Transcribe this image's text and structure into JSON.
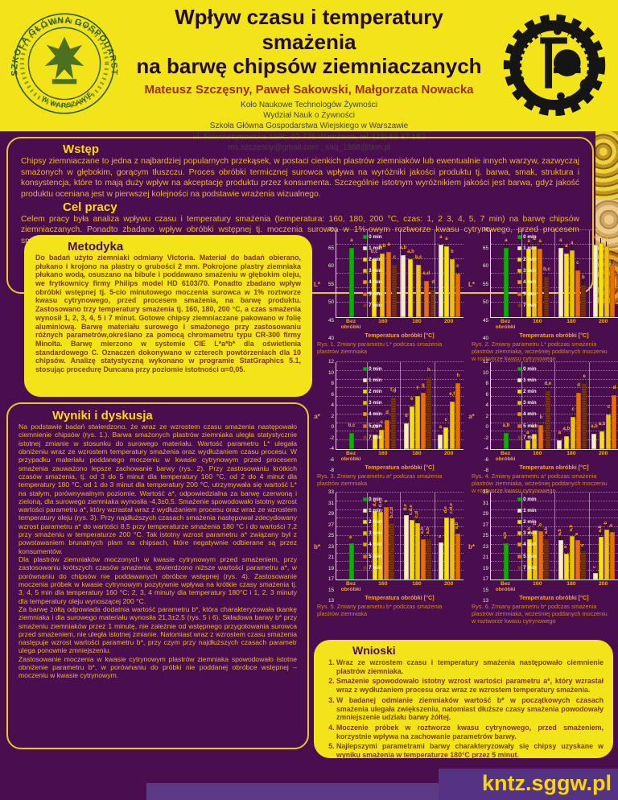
{
  "header": {
    "title_line1": "Wpływ czasu i temperatury smażenia",
    "title_line2": "na barwę chipsów ziemniaczanych",
    "authors": "Mateusz Szczęsny, Paweł Sakowski, Małgorzata Nowacka",
    "affiliation": [
      "Koło Naukowe Technologów Żywności",
      "Wydział Nauk o Żywności",
      "Szkoła Główna Gospodarstwa Wiejskiego w Warszawie",
      "ul. Nowoursynowska 159c, 02-776 Warszawa,  tel. (22) 59 37 182",
      "ms.szczesny@gmail.com , saq_1988@tlen.pl"
    ],
    "seal_text_ring": "SZKOŁA GŁÓWNA GOSPODARSTWA WIEJSKIEGO",
    "seal_text_bottom": "W WARSZAWIE"
  },
  "intro": {
    "heading": "Wstęp",
    "body": "Chipsy ziemniaczane to jedna z najbardziej popularnych przekąsek, w postaci cienkich plastrów ziemniaków lub ewentualnie innych warzyw, zazwyczaj smażonych w głębokim, gorącym tłuszczu. Proces obróbki termicznej surowca wpływa na wyróżniki jakości produktu tj. barwa, smak, struktura i konsystencja, które to mają duży wpływ na akceptację produktu przez konsumenta. Szczególnie istotnym wyróżnikiem jakości jest barwa, gdyż jakość produktu oceniana jest w pierwszej kolejności na podstawie wrażenia wizualnego."
  },
  "aim": {
    "heading": "Cel pracy",
    "body": "Celem pracy była analiza wpływu czasu i temperatury smażenia (temperatura: 160, 180, 200 °C, czas: 1, 2 3, 4, 5, 7 min) na barwę chipsów ziemniaczanych. Ponadto zbadano wpływ obróbki wstępnej tj. moczenia surowca w 1%-owym roztworze kwasu cytrynowego, przed procesem smażenia, na barwę produktu."
  },
  "methods": {
    "heading": "Metodyka",
    "body": "Do badań użyto ziemniaki odmiany Victoria. Materiał do badań obierano, płukano i krojono na plastry o grubości 2 mm. Pokrojone plastry ziemniaka płukano wodą, osuszano na bibule i poddawano smażeniu w głębokim oleju, we frytkownicy firmy Philips model HD 6103/70. Ponadto zbadano wpływ obróbki wstępnej tj. 5-cio minutowego moczenia surowca w 1% roztworze kwasu cytrynowego, przed procesem smażenia, na barwę produktu. Zastosowano trzy temperatury smażenia tj. 160, 180, 200 °C, a czas smażenia wynosił 1, 2, 3, 4, 5 i 7 minut. Gotowe chipsy ziemniaczane pakowano w folię aluminiową. Barwę materiału surowego i smażonego przy zastosowaniu różnych parametrów,określano za pomocą chromametru typu CR-300 firmy Minolta. Barwę mierzono w systemie CIE L*a*b* dla oświetlenia standardowego C. Oznaczeń dokonywano w czterech powtórzeniach dla 10 chipsów. Analizę statystyczną wykonano w programie StatGraphics 5.1, stosując procedurę Duncana przy poziomie istotności α=0,05."
  },
  "results": {
    "heading": "Wyniki i dyskusja",
    "paragraphs": [
      "Na podstawie badań stwierdzono, że wraz ze wzrostem czasu smażenia następowało ciemnienie chipsów (rys. 1.). Barwa smażonych plastrów ziemniaka uległa statystycznie istotnej zmianie w stosunku do surowego materiału. Wartość parametru L* ulegała obniżeniu wraz ze wzrostem temperatury smażenia oraz wydłużaniem czasu procesu. W przypadku materiału poddanego moczeniu w kwasie cytrynowym przed procesem smażenia zauważono lepsze zachowanie barwy (rys. 2). Przy zastosowaniu krótkich czasów smażenia, tj. od 3 do 5 minut dla temperatury 160 °C, od 2 do 4 minut dla temperatury 180 °C, od 1 do 3 minut dla temperatury 200 °C, utrzymywała się wartość L* na stałym, porównywalnym poziomie. Wartość a*, odpowiedzialna za barwę czerwoną i zieloną, dla surowego ziemniaka wynosiła -4,3±0,5. Smażenie spowodowało istotny wzrost wartości parametru a*, który wzrastał wraz z wydłużaniem procesu oraz wraz ze wzrostem temperatury oleju (rys. 3). Przy najdłuższych czasach smażenia następował zdecydowany wzrost parametru a* do wartości 8,5 przy temperaturze smażenia 180 °C i do wartości 7,2 przy smażeniu w temperaturze 200 °C. Tak istotny wzrost parametru a* związany był z powstawaniem brunatnych plam na chipsach, które negatywnie odbierane są przez konsumentów.",
      "Dla plastrów ziemniaków moczonych w kwasie cytrynowym przed smażeniem, przy zastosowaniu krótszych czasów smażenia, stwierdzono niższe wartości parametru a*, w porównaniu do chipsów nie poddawanych obróbce wstępnej (rys. 4). Zastosowanie moczenia próbek w kwasie cytrynowym pozytywnie wpływa na krótkie czasy smażenia tj. 3, 4, 5 min dla temperatury 160 °C; 2, 3, 4 minuty dla temperatury 180°C  i 1, 2, 3 minuty dla temperatury oleju wynoszącej 200 °C.",
      "Za barwę żółtą odpowiada dodatnia wartość parametru b*, która charakteryzowała tkankę ziemniaka i dla surowego materiału wynosiła 21,3±2,5 (rys. 5 i 6). Składowa barwy b* przy smażeniu ziemniaków przez 1 minutę, nie zależnie od wstępnego przygotowania surowca przed smażeniem, nie uległa istotnej zmianie. Natomiast wraz z wzrostem czasu smażenia następuje wzrost wartości parametru b*, przy czym przy najdłuższych czasach parametr ulega ponownie zmniejszeniu.",
      "Zastosowanie moczenia w kwasie cytrynowym plastrów ziemniaka spowodowało istotne obniżenie parametru b*, w porównaniu do próbki nie poddanej obróbce wstępnej – moczeniu w kwasie cytrynowym."
    ]
  },
  "conclusions": {
    "heading": "Wnioski",
    "items": [
      "Wraz ze wzrostem czasu i temperatury smażenia następowało ciemnienie plastrów ziemniaka.",
      "Smażenie spowodowało istotny wzrost wartości parametru a*, który wzrastał wraz z wydłużaniem procesu oraz wraz ze wzrostem temperatury smażenia.",
      "W badanej odmianie ziemniaków wartość b* w początkowych czasach smażenia ulegała zwiększeniu, natomiast dłuższe czasy smażenia powodowały zmniejszenie udziału barwy żółtej.",
      "Moczenie próbek w roztworze kwasu cytrynowego, przed smażeniem, korzystnie wpływa na zachowanie parametrów barwy.",
      "Najlepszymi parametrami barwy charakteryzowały się chipsy uzyskane w wyniku smażenia w temperaturze 180°C przez 5 minut."
    ]
  },
  "footer": {
    "site": "kntz.sggw.pl"
  },
  "colors": {
    "page_bg": "#4a0d4e",
    "header_yellow": "#f2e418",
    "heading_yellow": "#ffd90a",
    "body_gold": "#f0b434",
    "box_text_brown": "#7b3a10",
    "caption_orange": "#d4861f",
    "footer_purple": "#5c3a85",
    "site_yellow": "#f8d800"
  },
  "chart_common": {
    "legend": [
      {
        "key": "0",
        "label": "0 min"
      },
      {
        "key": "1",
        "label": "1 min"
      },
      {
        "key": "2",
        "label": "2 min"
      },
      {
        "key": "3",
        "label": "3 min"
      },
      {
        "key": "4",
        "label": "4 min"
      },
      {
        "key": "5",
        "label": "5 min"
      },
      {
        "key": "7",
        "label": "7 min"
      }
    ],
    "bar_colors": {
      "0": "#00b400",
      "1": "#f4efc6",
      "2": "#f9e400",
      "3": "#eec400",
      "4": "#f59e00",
      "5": "#e96f00",
      "7": "#7d3510"
    },
    "categories": [
      "Bez obróbki",
      "160",
      "180",
      "200"
    ],
    "xlabel": "Temperatura obróbki [°C]"
  },
  "chart_data": [
    {
      "type": "bar",
      "ylabel": "L*",
      "ylim": [
        40,
        70
      ],
      "ystep": 5,
      "vertical_letters": false,
      "caption": "Rys. 1. Zmiany parametru L* podczas smażenia plastrów ziemniaka",
      "groups": [
        [
          {
            "t": "0",
            "v": 64,
            "s": "a"
          }
        ],
        [
          {
            "t": "2",
            "v": 60,
            "s": "b,c"
          },
          {
            "t": "3",
            "v": 62,
            "s": "a,b"
          },
          {
            "t": "5",
            "v": 62.5,
            "s": "a"
          },
          {
            "t": "7",
            "v": 58,
            "s": "c"
          }
        ],
        [
          {
            "t": "1",
            "v": 61.5,
            "s": "a,b"
          },
          {
            "t": "2",
            "v": 60,
            "s": "a,b"
          },
          {
            "t": "3",
            "v": 58,
            "s": "b,c"
          },
          {
            "t": "5",
            "v": 52.5,
            "s": "c,d"
          },
          {
            "t": "7",
            "v": 49.5,
            "s": "d"
          }
        ],
        [
          {
            "t": "1",
            "v": 65,
            "s": "a"
          },
          {
            "t": "2",
            "v": 64.5,
            "s": "a"
          },
          {
            "t": "3",
            "v": 60,
            "s": "b"
          },
          {
            "t": "5",
            "v": 55,
            "s": "c"
          }
        ]
      ]
    },
    {
      "type": "bar",
      "ylabel": "L*",
      "ylim": [
        40,
        70
      ],
      "ystep": 5,
      "vertical_letters": false,
      "caption": "Rys. 2. Zmiany parametru L* podczas smażenia plastrów ziemniaka, wcześniej poddanych moczeniu w roztworze kwasu cytrynowego",
      "groups": [
        [
          {
            "t": "0",
            "v": 64,
            "s": "a"
          }
        ],
        [
          {
            "t": "2",
            "v": 63.5,
            "s": "a"
          },
          {
            "t": "3",
            "v": 64.5,
            "s": "a"
          },
          {
            "t": "5",
            "v": 63.5,
            "s": "a"
          },
          {
            "t": "7",
            "v": 54,
            "s": "b,c"
          }
        ],
        [
          {
            "t": "1",
            "v": 64,
            "s": "a"
          },
          {
            "t": "2",
            "v": 62,
            "s": "a"
          },
          {
            "t": "3",
            "v": 63,
            "s": "a"
          },
          {
            "t": "5",
            "v": 56,
            "s": "c"
          },
          {
            "t": "7",
            "v": 51,
            "s": "b"
          }
        ],
        [
          {
            "t": "1",
            "v": 65,
            "s": "a"
          },
          {
            "t": "2",
            "v": 65.5,
            "s": "a"
          },
          {
            "t": "3",
            "v": 64.5,
            "s": "a"
          },
          {
            "t": "5",
            "v": 58,
            "s": "c"
          }
        ]
      ]
    },
    {
      "type": "bar",
      "ylabel": "a*",
      "ylim": [
        -8,
        12
      ],
      "ystep": 2,
      "vertical_letters": false,
      "caption": "Rys. 3. Zmiany parametru a* podczas smażenia plastrów ziemniaka",
      "groups": [
        [
          {
            "t": "0",
            "v": -4.3,
            "s": "b,c"
          }
        ],
        [
          {
            "t": "2",
            "v": -4.7,
            "s": "a,b"
          },
          {
            "t": "3",
            "v": -3.5,
            "s": "c"
          },
          {
            "t": "5",
            "v": -1.3,
            "s": "d"
          },
          {
            "t": "7",
            "v": 3.8,
            "s": "f,g"
          }
        ],
        [
          {
            "t": "1",
            "v": -2,
            "s": "d"
          },
          {
            "t": "2",
            "v": 1.8,
            "s": "e"
          },
          {
            "t": "3",
            "v": 4.3,
            "s": "f"
          },
          {
            "t": "5",
            "v": 5,
            "s": "g"
          },
          {
            "t": "7",
            "v": 8.5,
            "s": "h"
          }
        ],
        [
          {
            "t": "1",
            "v": -4.6,
            "s": "a"
          },
          {
            "t": "2",
            "v": -3,
            "s": "c"
          },
          {
            "t": "3",
            "v": 3,
            "s": "e,f"
          },
          {
            "t": "5",
            "v": 7.2,
            "s": "h"
          }
        ]
      ]
    },
    {
      "type": "bar",
      "ylabel": "a*",
      "ylim": [
        -8,
        12
      ],
      "ystep": 2,
      "vertical_letters": false,
      "caption": "Rys. 4. Zmiany parametru a* podczas smażenia plastrów ziemniaka, wcześniej poddanych moczeniu w roztworze kwasu cytrynowego",
      "groups": [
        [
          {
            "t": "0",
            "v": -4.3,
            "s": "a,b"
          }
        ],
        [
          {
            "t": "2",
            "v": -6,
            "s": "a"
          },
          {
            "t": "3",
            "v": -4.5,
            "s": "a,b"
          },
          {
            "t": "5",
            "v": -2.5,
            "s": "b"
          },
          {
            "t": "7",
            "v": 5.3,
            "s": "d,e"
          }
        ],
        [
          {
            "t": "1",
            "v": -6,
            "s": "a"
          },
          {
            "t": "2",
            "v": -5,
            "s": "a,b"
          },
          {
            "t": "3",
            "v": -0.5,
            "s": "c"
          },
          {
            "t": "5",
            "v": 5,
            "s": "d"
          },
          {
            "t": "7",
            "v": 7,
            "s": "e"
          }
        ],
        [
          {
            "t": "1",
            "v": -4.5,
            "s": "a,b"
          },
          {
            "t": "2",
            "v": -4,
            "s": "a,b"
          },
          {
            "t": "3",
            "v": 0,
            "s": "c"
          },
          {
            "t": "5",
            "v": 4.5,
            "s": "d"
          }
        ]
      ]
    },
    {
      "type": "bar",
      "ylabel": "b*",
      "ylim": [
        13,
        33
      ],
      "ystep": 2,
      "vertical_letters": true,
      "caption": "Rys. 5. Zmiany parametru b* podczas smażenia plastrów ziemniaka",
      "groups": [
        [
          {
            "t": "0",
            "v": 21.3,
            "s": "a"
          }
        ],
        [
          {
            "t": "2",
            "v": 28.7,
            "s": "d,e"
          },
          {
            "t": "3",
            "v": 28.5,
            "s": "d,e"
          },
          {
            "t": "5",
            "v": 29.7,
            "s": "e"
          },
          {
            "t": "7",
            "v": 26,
            "s": "b,c,d"
          }
        ],
        [
          {
            "t": "1",
            "v": 27.8,
            "s": "d,e"
          },
          {
            "t": "2",
            "v": 26.7,
            "s": "c,d,e"
          },
          {
            "t": "3",
            "v": 26,
            "s": "c,d"
          },
          {
            "t": "5",
            "v": 22.3,
            "s": "a,b"
          },
          {
            "t": "7",
            "v": 22.3,
            "s": "a,b"
          }
        ],
        [
          {
            "t": "1",
            "v": 21.5,
            "s": "a"
          },
          {
            "t": "2",
            "v": 27.2,
            "s": "d,e"
          },
          {
            "t": "3",
            "v": 27,
            "s": "c,d,e"
          },
          {
            "t": "5",
            "v": 23.5,
            "s": "a,b"
          }
        ]
      ]
    },
    {
      "type": "bar",
      "ylabel": "b*",
      "ylim": [
        13,
        33
      ],
      "ystep": 2,
      "vertical_letters": true,
      "caption": "Rys. 6. Zmiany parametru b* podczas smażenia plastrów ziemniaka, wcześniej poddanych moczeniu w roztworze kwasu cytrynowego",
      "groups": [
        [
          {
            "t": "0",
            "v": 21.3,
            "s": "a,b"
          }
        ],
        [
          {
            "t": "2",
            "v": 22.3,
            "s": "a,b"
          },
          {
            "t": "3",
            "v": 24.3,
            "s": "b"
          },
          {
            "t": "5",
            "v": 24.2,
            "s": "b"
          },
          {
            "t": "7",
            "v": 22.3,
            "s": "a,b"
          }
        ],
        [
          {
            "t": "1",
            "v": 22,
            "s": "a,b"
          },
          {
            "t": "2",
            "v": 19,
            "s": "a"
          },
          {
            "t": "3",
            "v": 23,
            "s": "a,b"
          },
          {
            "t": "5",
            "v": 22,
            "s": "a"
          },
          {
            "t": "7",
            "v": 19.5,
            "s": "a"
          }
        ],
        [
          {
            "t": "1",
            "v": 14.5,
            "s": "c"
          },
          {
            "t": "2",
            "v": 22.8,
            "s": "a,b"
          },
          {
            "t": "3",
            "v": 24.5,
            "s": "b"
          },
          {
            "t": "5",
            "v": 24,
            "s": "b"
          }
        ]
      ]
    }
  ]
}
